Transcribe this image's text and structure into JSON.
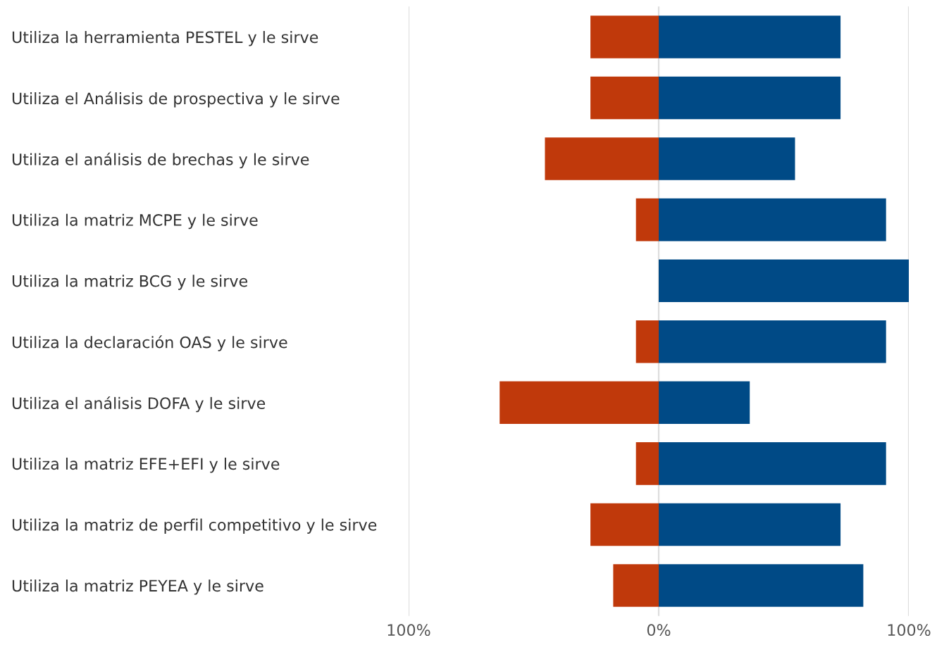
{
  "chart_data": {
    "type": "bar",
    "orientation": "horizontal",
    "stacked": true,
    "categories": [
      "Utiliza la herramienta PESTEL y le sirve",
      "Utiliza el Análisis de prospectiva y le sirve",
      "Utiliza el análisis de brechas y le sirve",
      "Utiliza la matriz MCPE y le sirve",
      "Utiliza la matriz BCG y le sirve",
      "Utiliza la declaración OAS y le sirve",
      "Utiliza el análisis DOFA y le sirve",
      "Utiliza la matriz EFE+EFI y le sirve",
      "Utiliza la matriz de perfil competitivo y le sirve",
      "Utiliza la matriz PEYEA y le sirve"
    ],
    "series": [
      {
        "color": "#c0390b",
        "values": [
          -27.3,
          -27.3,
          -45.5,
          -9.1,
          0,
          -9.1,
          -63.6,
          -9.1,
          -27.3,
          -18.2
        ]
      },
      {
        "color": "#004a86",
        "values": [
          72.7,
          72.7,
          54.5,
          90.9,
          100,
          90.9,
          36.4,
          90.9,
          72.7,
          81.8
        ]
      }
    ],
    "xlim": [
      -100,
      100
    ],
    "xticks": [
      {
        "value": -100,
        "label": "100%"
      },
      {
        "value": 0,
        "label": "0%"
      },
      {
        "value": 100,
        "label": "100%"
      }
    ],
    "grid": "x"
  }
}
